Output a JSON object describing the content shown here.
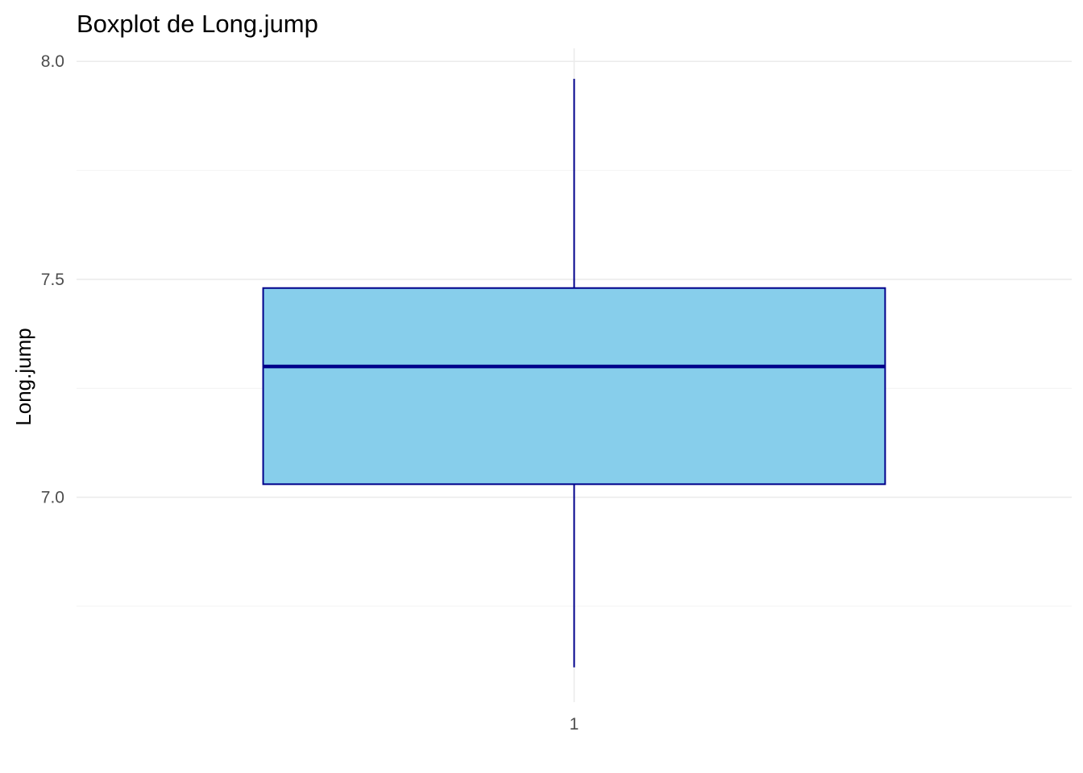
{
  "chart_data": {
    "type": "boxplot",
    "title": "Boxplot de Long.jump",
    "xlabel": "",
    "ylabel": "Long.jump",
    "categories": [
      "1"
    ],
    "boxes": [
      {
        "category": "1",
        "min": 6.61,
        "q1": 7.03,
        "median": 7.3,
        "q3": 7.48,
        "max": 7.96
      }
    ],
    "ylim": [
      6.53,
      8.03
    ],
    "yticks": [
      7.0,
      7.5,
      8.0
    ],
    "ytick_labels": [
      "7.0",
      "7.5",
      "8.0"
    ],
    "yminor": [
      6.75,
      7.25,
      7.75
    ],
    "grid": true,
    "legend": "none",
    "colors": {
      "fill": "#87CEEB",
      "outline": "#00008B"
    }
  }
}
